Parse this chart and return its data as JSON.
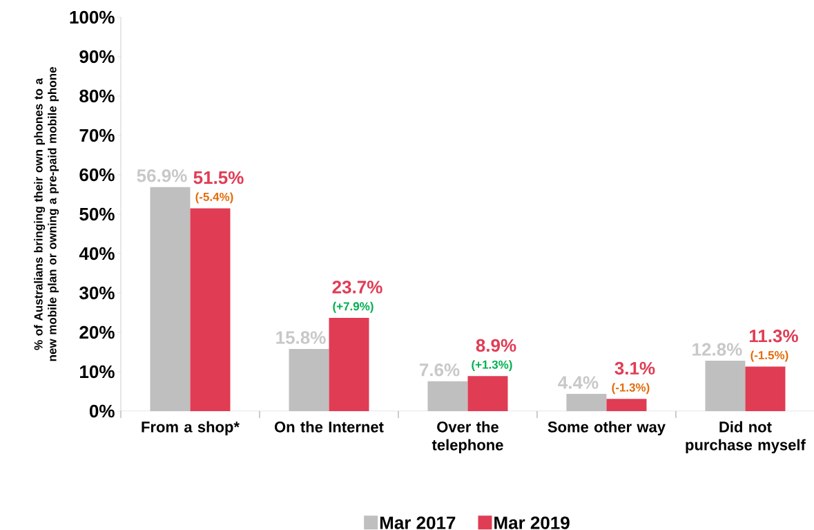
{
  "chart_data": {
    "type": "bar",
    "ylabel": "% of Australians bringing their own phones to a new mobile plan or owning a pre-paid mobile phone",
    "categories": [
      "From a shop*",
      "On the Internet",
      "Over the telephone",
      "Some other way",
      "Did not purchase myself"
    ],
    "series": [
      {
        "name": "Mar 2017",
        "color": "#bfbfbf",
        "values": [
          56.9,
          15.8,
          7.6,
          4.4,
          12.8
        ],
        "value_labels": [
          "56.9%",
          "15.8%",
          "7.6%",
          "4.4%",
          "12.8%"
        ]
      },
      {
        "name": "Mar 2019",
        "color": "#e03c54",
        "values": [
          51.5,
          23.7,
          8.9,
          3.1,
          11.3
        ],
        "value_labels": [
          "51.5%",
          "23.7%",
          "8.9%",
          "3.1%",
          "11.3%"
        ]
      }
    ],
    "annotations": [
      {
        "text": "(-5.4%)",
        "x": "From a shop*",
        "y": 51.5
      },
      {
        "text": "(+7.9%)",
        "x": "On the Internet",
        "y": 23.7
      },
      {
        "text": "(+1.3%)",
        "x": "Over the telephone",
        "y": 8.9
      },
      {
        "text": "(-1.3%)",
        "x": "Some other way",
        "y": 3.1
      },
      {
        "text": "(-1.5%)",
        "x": "Did not purchase myself",
        "y": 11.3
      }
    ],
    "ylim": [
      0,
      100
    ],
    "yticks": [
      {
        "value": 0,
        "label": "0%"
      },
      {
        "value": 10,
        "label": "10%"
      },
      {
        "value": 20,
        "label": "20%"
      },
      {
        "value": 30,
        "label": "30%"
      },
      {
        "value": 40,
        "label": "40%"
      },
      {
        "value": 50,
        "label": "50%"
      },
      {
        "value": 60,
        "label": "60%"
      },
      {
        "value": 70,
        "label": "70%"
      },
      {
        "value": 80,
        "label": "80%"
      },
      {
        "value": 90,
        "label": "90%"
      },
      {
        "value": 100,
        "label": "100%"
      }
    ],
    "grid": false,
    "legend": "bottom"
  }
}
